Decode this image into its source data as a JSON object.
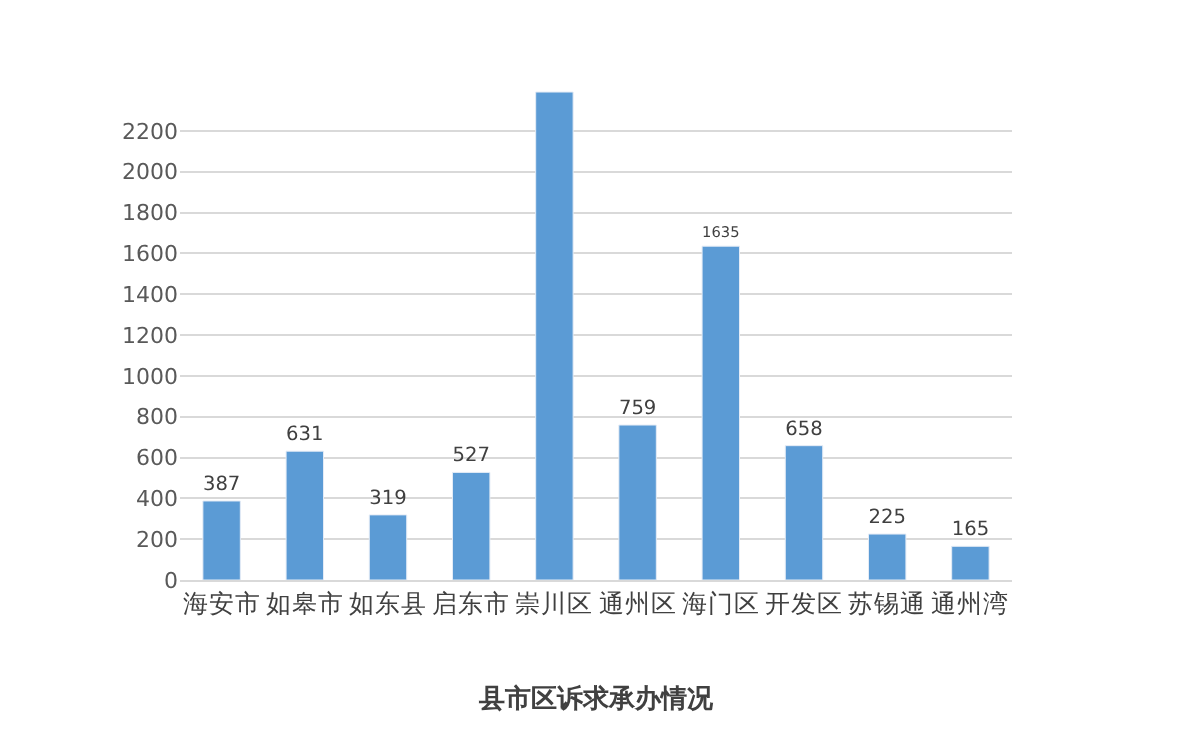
{
  "chart_data": {
    "type": "bar",
    "title": "县市区诉求承办情况",
    "categories": [
      "海安市",
      "如皋市",
      "如东县",
      "启东市",
      "崇川区",
      "通州区",
      "海门区",
      "开发区",
      "苏锡通",
      "通州湾"
    ],
    "values": [
      387,
      631,
      319,
      527,
      2390,
      759,
      1635,
      658,
      225,
      165
    ],
    "value_labels": [
      "387",
      "631",
      "319",
      "527",
      null,
      "759",
      "1635",
      "658",
      "225",
      "165"
    ],
    "color": "#5b9bd5",
    "ylim": [
      0,
      2400
    ],
    "yticks": [
      0,
      200,
      400,
      600,
      800,
      1000,
      1200,
      1400,
      1600,
      1800,
      2000,
      2200
    ],
    "grid": "y",
    "legend": false
  }
}
